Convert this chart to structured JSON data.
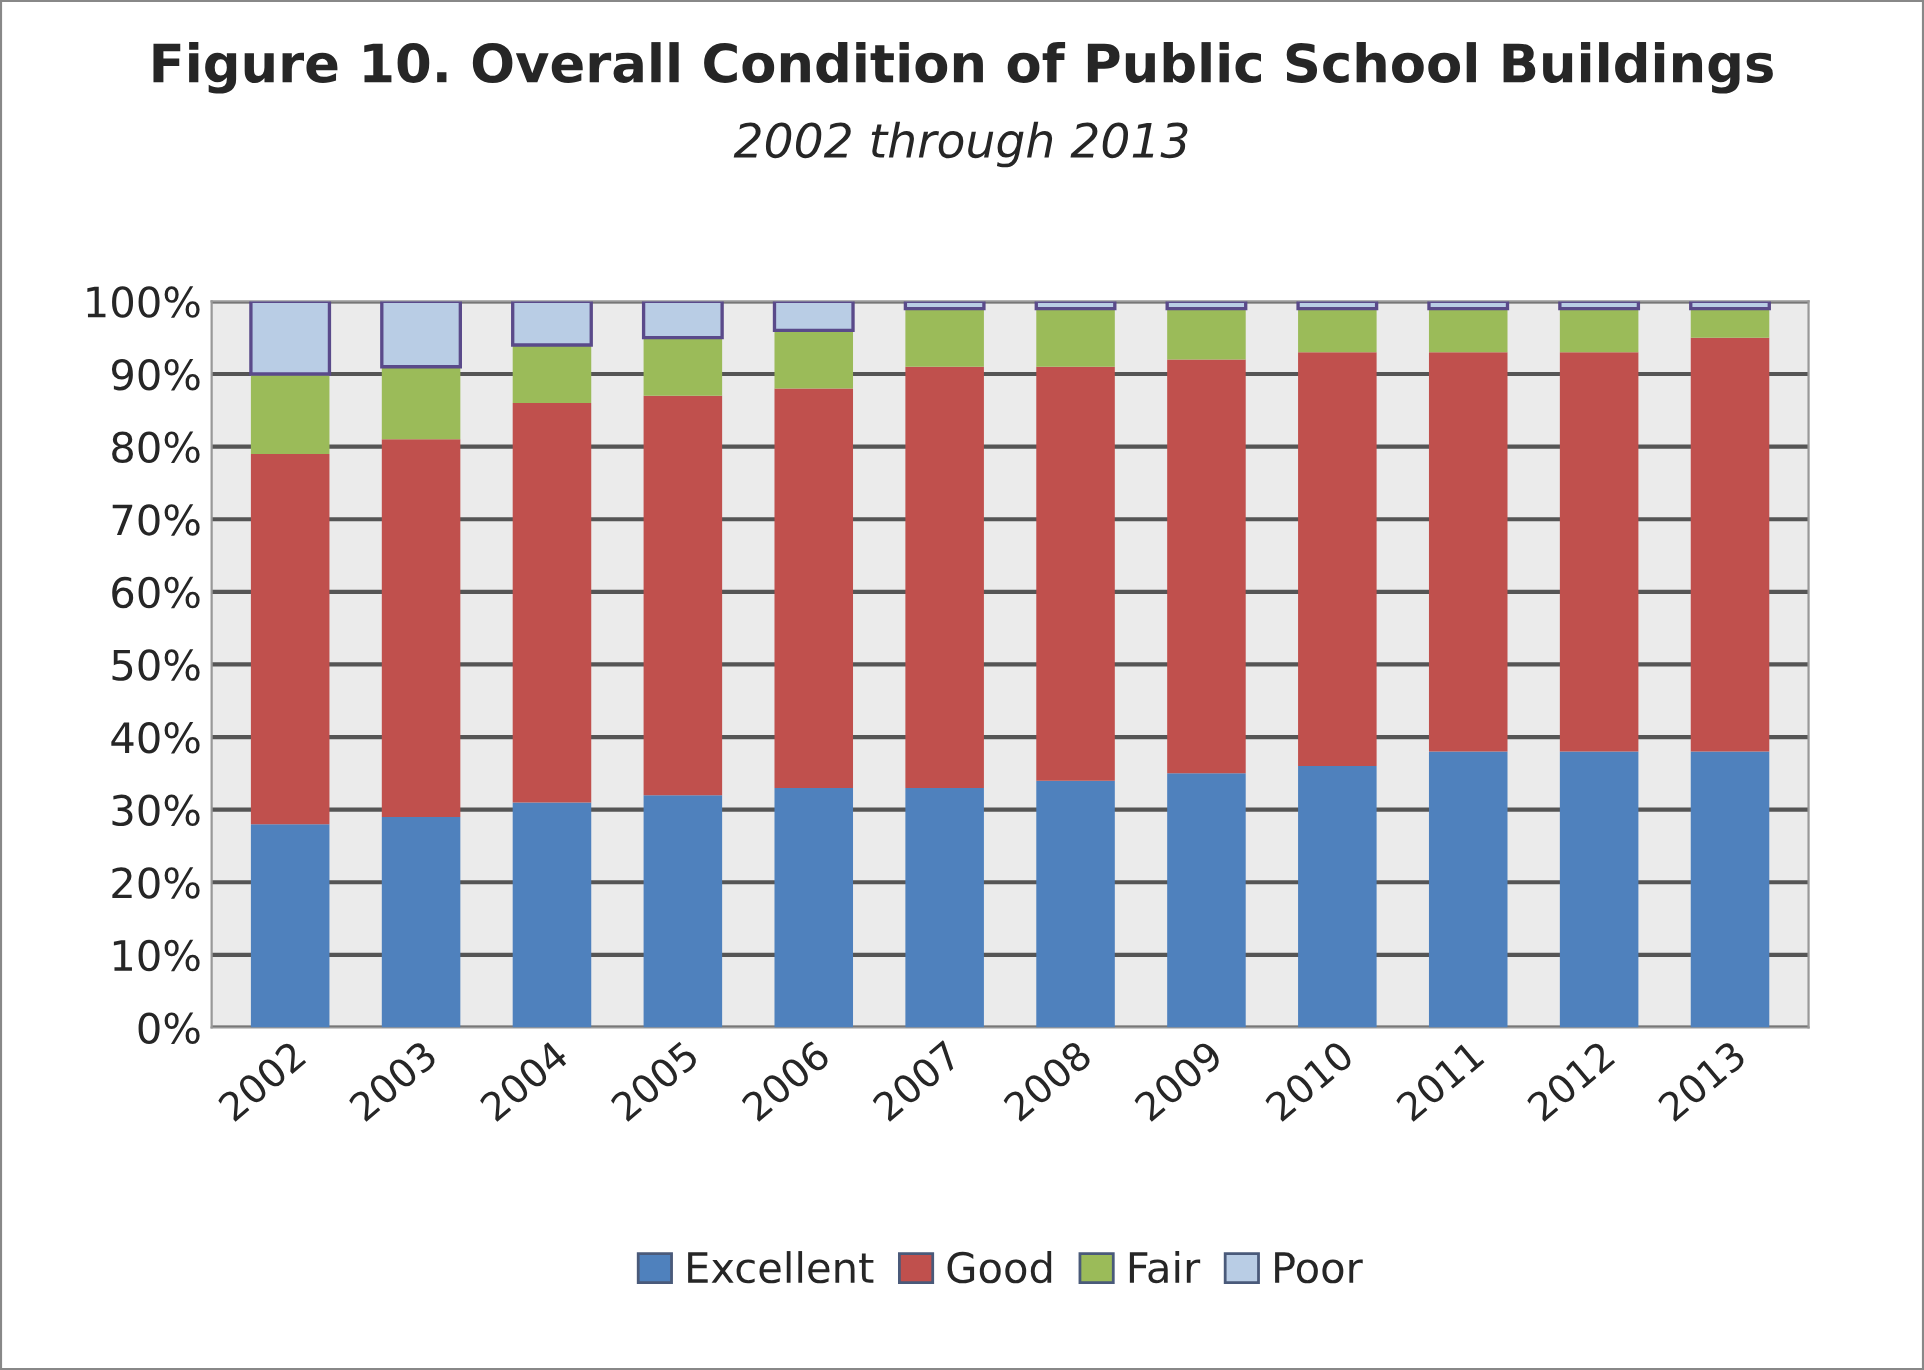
{
  "chart_data": {
    "type": "bar",
    "title": "Figure 10. Overall Condition of Public School Buildings",
    "subtitle": "2002 through 2013",
    "categories": [
      "2002",
      "2003",
      "2004",
      "2005",
      "2006",
      "2007",
      "2008",
      "2009",
      "2010",
      "2011",
      "2012",
      "2013"
    ],
    "stacked": true,
    "series": [
      {
        "name": "Excellent",
        "color": "#4f81bd",
        "values": [
          28,
          29,
          31,
          32,
          33,
          33,
          34,
          35,
          36,
          38,
          38,
          38
        ]
      },
      {
        "name": "Good",
        "color": "#c0504d",
        "values": [
          51,
          52,
          55,
          55,
          55,
          58,
          57,
          57,
          57,
          55,
          55,
          57
        ]
      },
      {
        "name": "Fair",
        "color": "#9bbb59",
        "values": [
          11,
          10,
          8,
          8,
          8,
          8,
          8,
          7,
          6,
          6,
          6,
          4
        ]
      },
      {
        "name": "Poor",
        "color": "#b9cde5",
        "values": [
          10,
          9,
          6,
          5,
          4,
          1,
          1,
          1,
          1,
          1,
          1,
          1
        ]
      }
    ],
    "ylim": [
      0,
      100
    ],
    "yticks": [
      {
        "value": 0,
        "label": "0%"
      },
      {
        "value": 10,
        "label": "10%"
      },
      {
        "value": 20,
        "label": "20%"
      },
      {
        "value": 30,
        "label": "30%"
      },
      {
        "value": 40,
        "label": "40%"
      },
      {
        "value": 50,
        "label": "50%"
      },
      {
        "value": 60,
        "label": "60%"
      },
      {
        "value": 70,
        "label": "70%"
      },
      {
        "value": 80,
        "label": "80%"
      },
      {
        "value": 90,
        "label": "90%"
      },
      {
        "value": 100,
        "label": "100%"
      }
    ],
    "grid": "y",
    "legend": "bottom"
  }
}
